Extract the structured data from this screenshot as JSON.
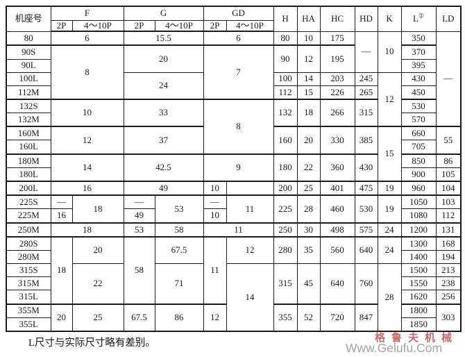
{
  "header": {
    "frame": "机座号",
    "f": "F",
    "g": "G",
    "gd": "GD",
    "p2": "2P",
    "p410": "4～10P",
    "h": "H",
    "ha": "HA",
    "hc": "HC",
    "hd": "HD",
    "k": "K",
    "l": "L",
    "l_sup": "①",
    "ld": "LD"
  },
  "table": {
    "columns": [
      "机座号",
      "F 2P",
      "F 4～10P",
      "G 2P",
      "G 4～10P",
      "GD 2P",
      "GD 4～10P",
      "H",
      "HA",
      "HC",
      "HD",
      "K",
      "L①",
      "LD"
    ],
    "rows": [
      {
        "thick": false,
        "cells": [
          {
            "t": "80"
          },
          {
            "t": "6",
            "cs": 2
          },
          {
            "t": "15.5",
            "cs": 2
          },
          {
            "t": "6",
            "cs": 2
          },
          {
            "t": "80"
          },
          {
            "t": "10"
          },
          {
            "t": "175"
          },
          {
            "t": "—",
            "rs": 3
          },
          {
            "t": "10",
            "rs": 3
          },
          {
            "t": "350"
          },
          {
            "t": "—",
            "rs": 7
          }
        ]
      },
      {
        "thick": true,
        "cells": [
          {
            "t": "90S"
          },
          {
            "t": "8",
            "cs": 2,
            "rs": 4
          },
          {
            "t": "20",
            "cs": 2,
            "rs": 2
          },
          {
            "t": "7",
            "cs": 2,
            "rs": 4
          },
          {
            "t": "90",
            "rs": 2
          },
          {
            "t": "12",
            "rs": 2
          },
          {
            "t": "195",
            "rs": 2
          },
          {
            "t": "370"
          }
        ]
      },
      {
        "cells": [
          {
            "t": "90L"
          },
          {
            "t": "395"
          }
        ]
      },
      {
        "cells": [
          {
            "t": "100L"
          },
          {
            "t": "24",
            "cs": 2,
            "rs": 2
          },
          {
            "t": "100"
          },
          {
            "t": "14"
          },
          {
            "t": "203"
          },
          {
            "t": "245"
          },
          {
            "t": "12",
            "rs": 4
          },
          {
            "t": "430"
          }
        ]
      },
      {
        "cells": [
          {
            "t": "112M"
          },
          {
            "t": "112"
          },
          {
            "t": "15"
          },
          {
            "t": "226"
          },
          {
            "t": "265"
          },
          {
            "t": "450"
          }
        ]
      },
      {
        "thick": true,
        "cells": [
          {
            "t": "132S"
          },
          {
            "t": "10",
            "cs": 2,
            "rs": 2
          },
          {
            "t": "33",
            "cs": 2,
            "rs": 2
          },
          {
            "t": "8",
            "cs": 2,
            "rs": 4
          },
          {
            "t": "132",
            "rs": 2
          },
          {
            "t": "18",
            "rs": 2
          },
          {
            "t": "266",
            "rs": 2
          },
          {
            "t": "315",
            "rs": 2
          },
          {
            "t": "530"
          }
        ]
      },
      {
        "cells": [
          {
            "t": "132M"
          },
          {
            "t": "570"
          }
        ]
      },
      {
        "thick": true,
        "cells": [
          {
            "t": "160M"
          },
          {
            "t": "12",
            "cs": 2,
            "rs": 2
          },
          {
            "t": "37",
            "cs": 2,
            "rs": 2
          },
          {
            "t": "160",
            "rs": 2
          },
          {
            "t": "20",
            "rs": 2
          },
          {
            "t": "330",
            "rs": 2
          },
          {
            "t": "385",
            "rs": 2
          },
          {
            "t": "15",
            "rs": 4
          },
          {
            "t": "660"
          },
          {
            "t": "55",
            "rs": 2
          }
        ]
      },
      {
        "cells": [
          {
            "t": "160L"
          },
          {
            "t": "705"
          }
        ]
      },
      {
        "thick": true,
        "cells": [
          {
            "t": "180M"
          },
          {
            "t": "14",
            "cs": 2,
            "rs": 2
          },
          {
            "t": "42.5",
            "cs": 2,
            "rs": 2
          },
          {
            "t": "9",
            "cs": 2,
            "rs": 2
          },
          {
            "t": "180",
            "rs": 2
          },
          {
            "t": "22",
            "rs": 2
          },
          {
            "t": "360",
            "rs": 2
          },
          {
            "t": "430",
            "rs": 2
          },
          {
            "t": "850"
          },
          {
            "t": "86"
          }
        ]
      },
      {
        "cells": [
          {
            "t": "180L"
          },
          {
            "t": "900"
          },
          {
            "t": "105"
          }
        ]
      },
      {
        "thick": true,
        "cells": [
          {
            "t": "200L"
          },
          {
            "t": "16",
            "cs": 2
          },
          {
            "t": "49",
            "cs": 2
          },
          {
            "t": "10"
          },
          {
            "t": ""
          },
          {
            "t": "200"
          },
          {
            "t": "25"
          },
          {
            "t": "401"
          },
          {
            "t": "475"
          },
          {
            "t": "19"
          },
          {
            "t": "960"
          },
          {
            "t": "104"
          }
        ]
      },
      {
        "thick": true,
        "cells": [
          {
            "t": "225S"
          },
          {
            "t": "—"
          },
          {
            "t": "18",
            "rs": 2
          },
          {
            "t": "—"
          },
          {
            "t": "53",
            "rs": 2
          },
          {
            "t": "—"
          },
          {
            "t": "11",
            "rs": 2
          },
          {
            "t": "225",
            "rs": 2
          },
          {
            "t": "28",
            "rs": 2
          },
          {
            "t": "460",
            "rs": 2
          },
          {
            "t": "530",
            "rs": 2
          },
          {
            "t": "19",
            "rs": 2
          },
          {
            "t": "1050"
          },
          {
            "t": "103"
          }
        ]
      },
      {
        "cells": [
          {
            "t": "225M"
          },
          {
            "t": "16"
          },
          {
            "t": "49"
          },
          {
            "t": "10"
          },
          {
            "t": "1080"
          },
          {
            "t": "112"
          }
        ]
      },
      {
        "thick": true,
        "cells": [
          {
            "t": "250M"
          },
          {
            "t": "18",
            "cs": 2
          },
          {
            "t": "53"
          },
          {
            "t": "58"
          },
          {
            "t": "11",
            "cs": 2
          },
          {
            "t": "250"
          },
          {
            "t": "30"
          },
          {
            "t": "498"
          },
          {
            "t": "575"
          },
          {
            "t": "24"
          },
          {
            "t": "1200"
          },
          {
            "t": "131"
          }
        ]
      },
      {
        "thick": true,
        "cells": [
          {
            "t": "280S"
          },
          {
            "t": "18",
            "rs": 5
          },
          {
            "t": "20",
            "rs": 2
          },
          {
            "t": "58",
            "rs": 5
          },
          {
            "t": "67.5",
            "rs": 2
          },
          {
            "t": "11",
            "rs": 5
          },
          {
            "t": "12",
            "rs": 2
          },
          {
            "t": "280",
            "rs": 2
          },
          {
            "t": "35",
            "rs": 2
          },
          {
            "t": "560",
            "rs": 2
          },
          {
            "t": "640",
            "rs": 2
          },
          {
            "t": "24",
            "rs": 2
          },
          {
            "t": "1300"
          },
          {
            "t": "168"
          }
        ]
      },
      {
        "cells": [
          {
            "t": "280M"
          },
          {
            "t": "1400"
          },
          {
            "t": "194"
          }
        ]
      },
      {
        "cells": [
          {
            "t": "315S"
          },
          {
            "t": "22",
            "rs": 3
          },
          {
            "t": "71",
            "rs": 3
          },
          {
            "t": "14",
            "rs": 5
          },
          {
            "t": "315",
            "rs": 3
          },
          {
            "t": "45",
            "rs": 3
          },
          {
            "t": "640",
            "rs": 3
          },
          {
            "t": "760",
            "rs": 3
          },
          {
            "t": "28",
            "rs": 5
          },
          {
            "t": "1500"
          },
          {
            "t": "213"
          }
        ]
      },
      {
        "cells": [
          {
            "t": "315M"
          },
          {
            "t": "1550"
          },
          {
            "t": "238"
          }
        ]
      },
      {
        "cells": [
          {
            "t": "315L"
          },
          {
            "t": "1620"
          },
          {
            "t": "256"
          }
        ]
      },
      {
        "thick": true,
        "cells": [
          {
            "t": "355M"
          },
          {
            "t": "20",
            "rs": 2
          },
          {
            "t": "25",
            "rs": 2
          },
          {
            "t": "67.5",
            "rs": 2
          },
          {
            "t": "86",
            "rs": 2
          },
          {
            "t": "12",
            "rs": 2
          },
          {
            "t": "355",
            "rs": 2
          },
          {
            "t": "52",
            "rs": 2
          },
          {
            "t": "720",
            "rs": 2
          },
          {
            "t": "847",
            "rs": 2
          },
          {
            "t": "1800"
          },
          {
            "t": "303",
            "rs": 2
          }
        ]
      },
      {
        "cells": [
          {
            "t": "355L"
          },
          {
            "t": "1850"
          }
        ]
      }
    ]
  },
  "footnote": "L尺寸与实际尺寸略有差别。",
  "watermark": {
    "brand": "格鲁夫机械",
    "url": "Www.Gelufu.Com",
    "brand_color": "#c96a6a",
    "url_color": "#a3a3a3"
  }
}
